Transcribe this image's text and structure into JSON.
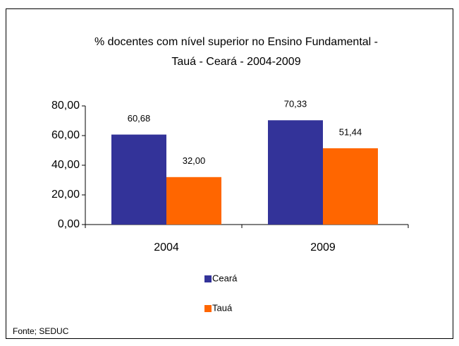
{
  "chart_data": {
    "type": "bar",
    "title": [
      "% docentes com nível  superior no Ensino Fundamental  -",
      "Tauá   -  Ceará - 2004-2009"
    ],
    "categories": [
      "2004",
      "2009"
    ],
    "series": [
      {
        "name": "Ceará",
        "color": "#333399",
        "values": [
          60.68,
          70.33
        ],
        "value_labels": [
          "60,68",
          "70,33"
        ]
      },
      {
        "name": "Tauá",
        "color": "#ff6600",
        "values": [
          32.0,
          51.44
        ],
        "value_labels": [
          "32,00",
          "51,44"
        ]
      }
    ],
    "ylim": [
      0,
      80
    ],
    "yticks": [
      {
        "value": 0,
        "label": "0,00"
      },
      {
        "value": 20,
        "label": "20,00"
      },
      {
        "value": 40,
        "label": "40,00"
      },
      {
        "value": 60,
        "label": "60,00"
      },
      {
        "value": 80,
        "label": "80,00"
      }
    ],
    "legend": "bottom",
    "source": "Fonte; SEDUC"
  }
}
